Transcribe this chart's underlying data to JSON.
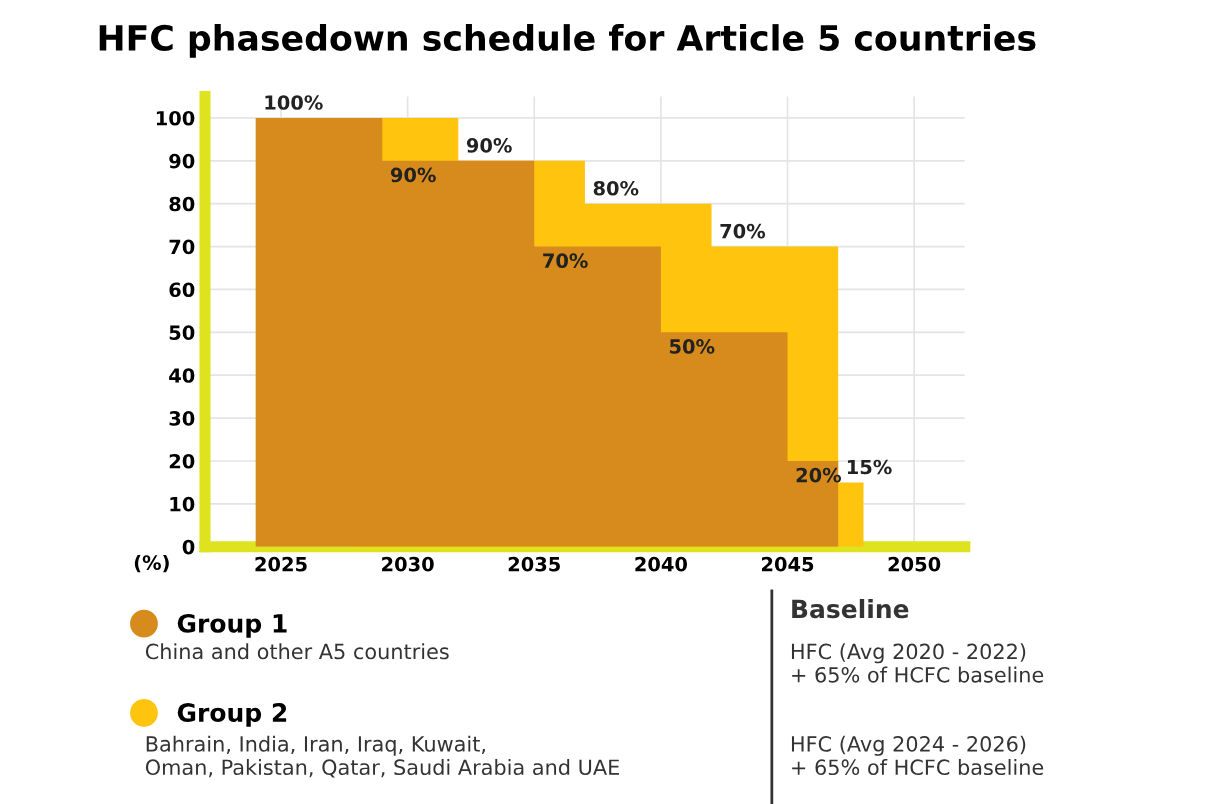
{
  "chart_data": {
    "type": "area",
    "title": "HFC phasedown schedule for Article 5 countries",
    "ylabel": "(%)",
    "xlim": [
      2022,
      2052
    ],
    "xticks": [
      2025,
      2030,
      2035,
      2040,
      2045,
      2050
    ],
    "ylim": [
      0,
      105
    ],
    "yticks": [
      0,
      10,
      20,
      30,
      40,
      50,
      60,
      70,
      80,
      90,
      100
    ],
    "grid": true,
    "legend": "bottom",
    "series": [
      {
        "name": "Group 1",
        "color": "#d68b1c",
        "x": [
          2024,
          2029,
          2035,
          2040,
          2045,
          2047
        ],
        "values": [
          100,
          90,
          70,
          50,
          20,
          20
        ],
        "value_labels": [
          "100%",
          "90%",
          "70%",
          "50%",
          "20%",
          null
        ]
      },
      {
        "name": "Group 2",
        "color": "#ffc40d",
        "x": [
          2028,
          2032,
          2037,
          2042,
          2047,
          2048
        ],
        "values": [
          100,
          90,
          80,
          70,
          15,
          15
        ],
        "value_labels": [
          null,
          "90%",
          "80%",
          "70%",
          "15%",
          null
        ]
      }
    ],
    "annotations": [
      "China and other A5 countries",
      "Bahrain, India, Iran, Iraq, Kuwait,\nOman, Pakistan, Qatar, Saudi Arabia and UAE",
      "Baseline",
      "HFC (Avg 2020 - 2022)\n+ 65% of HCFC baseline",
      "HFC (Avg 2024 - 2026)\n+ 65% of HCFC baseline"
    ]
  }
}
